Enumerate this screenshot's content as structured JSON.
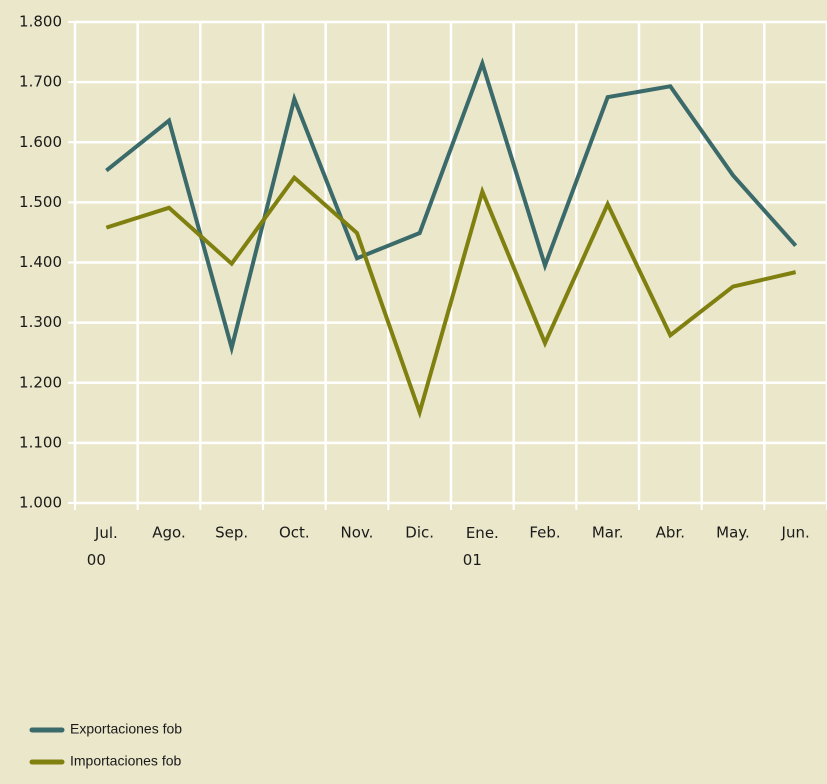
{
  "chart_data": {
    "type": "line",
    "categories": [
      "Jul.\n00",
      "Ago.",
      "Sep.",
      "Oct.",
      "Nov.",
      "Dic.",
      "Ene.\n01",
      "Feb.",
      "Mar.",
      "Abr.",
      "May.",
      "Jun."
    ],
    "series": [
      {
        "name": "Exportaciones fob",
        "color": "#3b6a6a",
        "values": [
          1553,
          1636,
          1258,
          1672,
          1407,
          1449,
          1731,
          1395,
          1675,
          1693,
          1545,
          1428
        ]
      },
      {
        "name": "Importaciones fob",
        "color": "#808010",
        "values": [
          1458,
          1491,
          1398,
          1541,
          1449,
          1151,
          1518,
          1266,
          1497,
          1279,
          1360,
          1384
        ]
      }
    ],
    "ylim": [
      1000,
      1800
    ],
    "yticks": [
      {
        "value": 1000,
        "label": "1.000"
      },
      {
        "value": 1100,
        "label": "1.100"
      },
      {
        "value": 1200,
        "label": "1.200"
      },
      {
        "value": 1300,
        "label": "1.300"
      },
      {
        "value": 1400,
        "label": "1.400"
      },
      {
        "value": 1500,
        "label": "1.500"
      },
      {
        "value": 1600,
        "label": "1.600"
      },
      {
        "value": 1700,
        "label": "1.700"
      },
      {
        "value": 1800,
        "label": "1.800"
      }
    ],
    "grid": true,
    "legend": "bottom-left"
  }
}
